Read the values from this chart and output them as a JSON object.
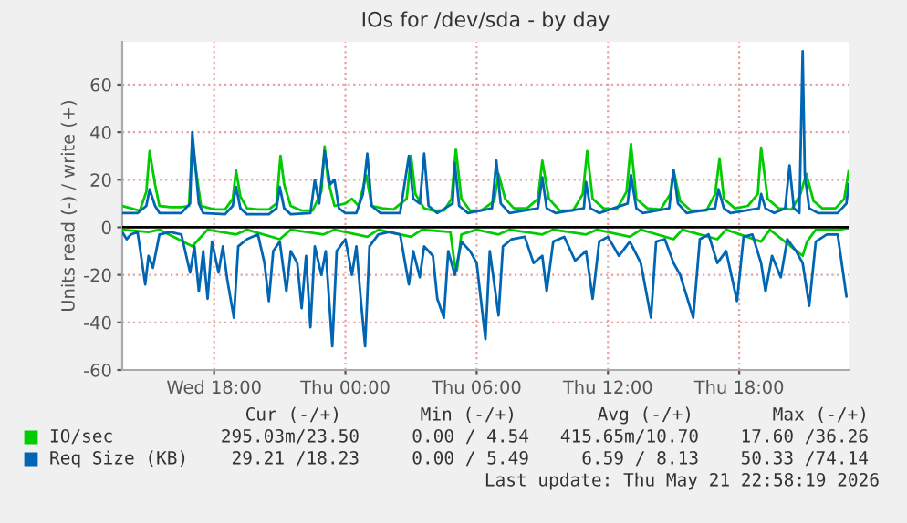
{
  "chart_data": {
    "type": "line",
    "title": "IOs for /dev/sda - by day",
    "ylabel": "Units read (-) / write (+)",
    "xlim": [
      "2026-05-20T13:48",
      "2026-05-21T23:00"
    ],
    "ylim": [
      -60,
      78
    ],
    "xticks": [
      {
        "value": "2026-05-20T18:00",
        "label": "Wed 18:00"
      },
      {
        "value": "2026-05-21T00:00",
        "label": "Thu 00:00"
      },
      {
        "value": "2026-05-21T06:00",
        "label": "Thu 06:00"
      },
      {
        "value": "2026-05-21T12:00",
        "label": "Thu 12:00"
      },
      {
        "value": "2026-05-21T18:00",
        "label": "Thu 18:00"
      }
    ],
    "yticks": [
      -60,
      -40,
      -20,
      0,
      20,
      40,
      60
    ],
    "grid": true,
    "legend": "bottom",
    "marker": "none",
    "line_style": "solid",
    "ref_lines": [
      {
        "axis": "y",
        "value": 0,
        "color": "#000000"
      }
    ],
    "series": [
      {
        "name": "IO/sec",
        "color": "#00cc00",
        "x": [
          "2026-05-20T13:48",
          "2026-05-20T14:12",
          "2026-05-20T14:36",
          "2026-05-20T14:54",
          "2026-05-20T15:03",
          "2026-05-20T15:18",
          "2026-05-20T15:30",
          "2026-05-20T16:00",
          "2026-05-20T16:30",
          "2026-05-20T16:51",
          "2026-05-20T17:00",
          "2026-05-20T17:12",
          "2026-05-20T17:24",
          "2026-05-20T18:00",
          "2026-05-20T18:30",
          "2026-05-20T18:51",
          "2026-05-20T19:00",
          "2026-05-20T19:12",
          "2026-05-20T19:30",
          "2026-05-20T20:00",
          "2026-05-20T20:30",
          "2026-05-20T20:51",
          "2026-05-20T21:02",
          "2026-05-20T21:12",
          "2026-05-20T21:30",
          "2026-05-20T22:00",
          "2026-05-20T22:30",
          "2026-05-20T22:54",
          "2026-05-20T23:03",
          "2026-05-20T23:12",
          "2026-05-20T23:30",
          "2026-05-21T00:00",
          "2026-05-21T00:18",
          "2026-05-21T00:36",
          "2026-05-21T00:57",
          "2026-05-21T01:12",
          "2026-05-21T01:42",
          "2026-05-21T02:12",
          "2026-05-21T02:48",
          "2026-05-21T03:00",
          "2026-05-21T03:12",
          "2026-05-21T03:36",
          "2026-05-21T04:00",
          "2026-05-21T04:30",
          "2026-05-21T04:51",
          "2026-05-21T05:03",
          "2026-05-21T05:18",
          "2026-05-21T05:42",
          "2026-05-21T06:12",
          "2026-05-21T06:48",
          "2026-05-21T07:00",
          "2026-05-21T07:18",
          "2026-05-21T07:42",
          "2026-05-21T08:18",
          "2026-05-21T08:48",
          "2026-05-21T09:00",
          "2026-05-21T09:18",
          "2026-05-21T09:48",
          "2026-05-21T10:24",
          "2026-05-21T10:51",
          "2026-05-21T11:03",
          "2026-05-21T11:18",
          "2026-05-21T11:48",
          "2026-05-21T12:24",
          "2026-05-21T12:51",
          "2026-05-21T13:03",
          "2026-05-21T13:18",
          "2026-05-21T13:48",
          "2026-05-21T14:24",
          "2026-05-21T14:51",
          "2026-05-21T15:00",
          "2026-05-21T15:18",
          "2026-05-21T15:48",
          "2026-05-21T16:30",
          "2026-05-21T16:54",
          "2026-05-21T17:06",
          "2026-05-21T17:18",
          "2026-05-21T17:48",
          "2026-05-21T18:24",
          "2026-05-21T18:51",
          "2026-05-21T19:00",
          "2026-05-21T19:18",
          "2026-05-21T19:48",
          "2026-05-21T20:24",
          "2026-05-21T20:48",
          "2026-05-21T21:04",
          "2026-05-21T21:24",
          "2026-05-21T21:48",
          "2026-05-21T22:24",
          "2026-05-21T22:48",
          "2026-05-21T23:00"
        ],
        "values": [
          9,
          8,
          7,
          15,
          32,
          18,
          9,
          8.5,
          8.5,
          9,
          36,
          22,
          9,
          7.5,
          7.5,
          12,
          24,
          13,
          8,
          7.5,
          7.5,
          10,
          30,
          18,
          9,
          7,
          7,
          15,
          34,
          20,
          9,
          10,
          12,
          9,
          22,
          9,
          8,
          7.5,
          12,
          30,
          14,
          8,
          7,
          7,
          12,
          33,
          12,
          7,
          7,
          11,
          22.5,
          12,
          8,
          8,
          12,
          28,
          12,
          7,
          7,
          14,
          32,
          12,
          8,
          7.5,
          15,
          35,
          12,
          8,
          7.5,
          14,
          24,
          11,
          7,
          7,
          14,
          29,
          12,
          8,
          9,
          14,
          33.5,
          12,
          8,
          7.5,
          14,
          22.5,
          11,
          8,
          8,
          12,
          23.5
        ]
      },
      {
        "color": "#00cc00",
        "x": [
          "2026-05-20T13:48",
          "2026-05-20T15:00",
          "2026-05-20T15:30",
          "2026-05-20T17:00",
          "2026-05-20T17:18",
          "2026-05-20T17:42",
          "2026-05-20T19:00",
          "2026-05-20T19:30",
          "2026-05-20T21:00",
          "2026-05-20T21:30",
          "2026-05-20T23:00",
          "2026-05-20T23:30",
          "2026-05-21T01:00",
          "2026-05-21T01:30",
          "2026-05-21T03:00",
          "2026-05-21T03:30",
          "2026-05-21T04:48",
          "2026-05-21T05:00",
          "2026-05-21T05:06",
          "2026-05-21T05:18",
          "2026-05-21T06:00",
          "2026-05-21T07:00",
          "2026-05-21T07:30",
          "2026-05-21T09:00",
          "2026-05-21T09:30",
          "2026-05-21T11:00",
          "2026-05-21T11:30",
          "2026-05-21T13:00",
          "2026-05-21T13:30",
          "2026-05-21T15:00",
          "2026-05-21T15:24",
          "2026-05-21T17:00",
          "2026-05-21T17:24",
          "2026-05-21T19:00",
          "2026-05-21T19:24",
          "2026-05-21T20:54",
          "2026-05-21T21:06",
          "2026-05-21T21:30",
          "2026-05-21T22:30",
          "2026-05-21T23:00"
        ],
        "values": [
          -1,
          -2,
          -1,
          -8,
          -5,
          -1,
          -3,
          -1,
          -5,
          -1,
          -3,
          -1,
          -4,
          -1,
          -4,
          -1,
          -2,
          -16,
          -18,
          -3,
          -1,
          -3,
          -1,
          -3,
          -1,
          -3,
          -1,
          -4,
          -1,
          -5,
          -1,
          -5,
          -1,
          -6,
          -1,
          -12,
          -6,
          -1,
          -1,
          -0.3
        ]
      },
      {
        "name": "Req Size (KB)",
        "color": "#0066b3",
        "x": [
          "2026-05-20T13:48",
          "2026-05-20T14:30",
          "2026-05-20T14:54",
          "2026-05-20T15:03",
          "2026-05-20T15:18",
          "2026-05-20T15:30",
          "2026-05-20T16:30",
          "2026-05-20T16:54",
          "2026-05-20T17:00",
          "2026-05-20T17:09",
          "2026-05-20T17:18",
          "2026-05-20T17:30",
          "2026-05-20T18:30",
          "2026-05-20T18:51",
          "2026-05-20T19:00",
          "2026-05-20T19:12",
          "2026-05-20T19:30",
          "2026-05-20T20:30",
          "2026-05-20T20:51",
          "2026-05-20T21:00",
          "2026-05-20T21:12",
          "2026-05-20T21:30",
          "2026-05-20T22:24",
          "2026-05-20T22:36",
          "2026-05-20T22:48",
          "2026-05-20T23:03",
          "2026-05-20T23:18",
          "2026-05-20T23:30",
          "2026-05-20T23:42",
          "2026-05-21T00:00",
          "2026-05-21T00:30",
          "2026-05-21T00:48",
          "2026-05-21T01:00",
          "2026-05-21T01:12",
          "2026-05-21T01:36",
          "2026-05-21T02:30",
          "2026-05-21T02:54",
          "2026-05-21T03:06",
          "2026-05-21T03:24",
          "2026-05-21T03:36",
          "2026-05-21T03:48",
          "2026-05-21T04:12",
          "2026-05-21T04:54",
          "2026-05-21T05:00",
          "2026-05-21T05:12",
          "2026-05-21T05:36",
          "2026-05-21T06:42",
          "2026-05-21T06:54",
          "2026-05-21T07:06",
          "2026-05-21T07:30",
          "2026-05-21T08:48",
          "2026-05-21T09:00",
          "2026-05-21T09:12",
          "2026-05-21T09:36",
          "2026-05-21T10:54",
          "2026-05-21T11:00",
          "2026-05-21T11:12",
          "2026-05-21T11:36",
          "2026-05-21T12:54",
          "2026-05-21T13:03",
          "2026-05-21T13:18",
          "2026-05-21T13:36",
          "2026-05-21T14:48",
          "2026-05-21T15:00",
          "2026-05-21T15:12",
          "2026-05-21T15:36",
          "2026-05-21T16:54",
          "2026-05-21T17:03",
          "2026-05-21T17:18",
          "2026-05-21T17:36",
          "2026-05-21T18:54",
          "2026-05-21T19:00",
          "2026-05-21T19:12",
          "2026-05-21T19:36",
          "2026-05-21T20:06",
          "2026-05-21T20:18",
          "2026-05-21T20:30",
          "2026-05-21T20:45",
          "2026-05-21T20:54",
          "2026-05-21T21:00",
          "2026-05-21T21:12",
          "2026-05-21T21:36",
          "2026-05-21T22:30",
          "2026-05-21T22:54",
          "2026-05-21T23:00"
        ],
        "values": [
          6,
          6,
          9,
          16,
          9,
          6,
          6,
          10,
          40,
          25,
          10,
          6,
          5.5,
          9,
          17,
          8,
          5.5,
          5.5,
          8,
          17,
          8,
          5.5,
          6,
          20,
          10,
          32,
          18,
          20,
          8,
          6,
          6,
          14,
          31,
          9,
          6,
          6,
          30,
          12,
          10,
          31,
          9,
          6,
          10,
          27,
          9,
          6,
          8,
          28,
          10,
          6,
          8,
          21,
          8,
          6,
          8,
          19,
          8,
          6,
          10,
          22,
          8,
          6,
          8,
          24,
          10,
          6,
          8,
          16,
          8,
          6,
          8,
          14,
          8,
          6,
          8,
          26,
          8,
          6,
          74,
          22,
          8,
          6,
          6,
          10,
          18
        ]
      },
      {
        "color": "#0066b3",
        "x": [
          "2026-05-20T13:48",
          "2026-05-20T14:00",
          "2026-05-20T14:12",
          "2026-05-20T14:30",
          "2026-05-20T14:51",
          "2026-05-20T15:00",
          "2026-05-20T15:12",
          "2026-05-20T15:30",
          "2026-05-20T16:00",
          "2026-05-20T16:30",
          "2026-05-20T16:54",
          "2026-05-20T17:06",
          "2026-05-20T17:18",
          "2026-05-20T17:30",
          "2026-05-20T17:42",
          "2026-05-20T17:54",
          "2026-05-20T18:12",
          "2026-05-20T18:24",
          "2026-05-20T18:36",
          "2026-05-20T18:54",
          "2026-05-20T19:06",
          "2026-05-20T19:30",
          "2026-05-20T20:00",
          "2026-05-20T20:18",
          "2026-05-20T20:30",
          "2026-05-20T20:42",
          "2026-05-20T21:00",
          "2026-05-20T21:18",
          "2026-05-20T21:30",
          "2026-05-20T21:48",
          "2026-05-20T22:00",
          "2026-05-20T22:12",
          "2026-05-20T22:24",
          "2026-05-20T22:36",
          "2026-05-20T22:54",
          "2026-05-20T23:06",
          "2026-05-20T23:24",
          "2026-05-20T23:36",
          "2026-05-21T00:00",
          "2026-05-21T00:18",
          "2026-05-21T00:30",
          "2026-05-21T00:42",
          "2026-05-21T00:54",
          "2026-05-21T01:06",
          "2026-05-21T01:30",
          "2026-05-21T02:00",
          "2026-05-21T02:30",
          "2026-05-21T02:54",
          "2026-05-21T03:06",
          "2026-05-21T03:24",
          "2026-05-21T03:36",
          "2026-05-21T04:00",
          "2026-05-21T04:12",
          "2026-05-21T04:30",
          "2026-05-21T04:42",
          "2026-05-21T05:00",
          "2026-05-21T05:18",
          "2026-05-21T05:42",
          "2026-05-21T06:00",
          "2026-05-21T06:24",
          "2026-05-21T06:36",
          "2026-05-21T07:00",
          "2026-05-21T07:12",
          "2026-05-21T07:36",
          "2026-05-21T08:12",
          "2026-05-21T08:36",
          "2026-05-21T09:00",
          "2026-05-21T09:12",
          "2026-05-21T09:30",
          "2026-05-21T10:00",
          "2026-05-21T10:30",
          "2026-05-21T11:00",
          "2026-05-21T11:18",
          "2026-05-21T11:36",
          "2026-05-21T12:00",
          "2026-05-21T12:30",
          "2026-05-21T13:00",
          "2026-05-21T13:30",
          "2026-05-21T13:58",
          "2026-05-21T14:12",
          "2026-05-21T14:36",
          "2026-05-21T15:00",
          "2026-05-21T15:18",
          "2026-05-21T15:54",
          "2026-05-21T16:12",
          "2026-05-21T16:36",
          "2026-05-21T17:00",
          "2026-05-21T17:24",
          "2026-05-21T17:54",
          "2026-05-21T18:12",
          "2026-05-21T18:36",
          "2026-05-21T19:00",
          "2026-05-21T19:12",
          "2026-05-21T19:30",
          "2026-05-21T19:54",
          "2026-05-21T20:12",
          "2026-05-21T20:36",
          "2026-05-21T20:54",
          "2026-05-21T21:12",
          "2026-05-21T21:30",
          "2026-05-21T22:00",
          "2026-05-21T22:30",
          "2026-05-21T22:54"
        ],
        "values": [
          -2,
          -5,
          -3,
          -2,
          -24,
          -12,
          -17,
          -3,
          -2,
          -3,
          -19,
          -8,
          -27,
          -10,
          -30,
          -6,
          -19,
          -8,
          -22,
          -38,
          -8,
          -5,
          -3,
          -15,
          -31,
          -10,
          -6,
          -27,
          -10,
          -15,
          -34,
          -12,
          -42,
          -8,
          -20,
          -10,
          -50,
          -10,
          -5,
          -20,
          -8,
          -30,
          -50,
          -8,
          -3,
          -2,
          -3,
          -24,
          -10,
          -21,
          -8,
          -12,
          -30,
          -38,
          -10,
          -20,
          -6,
          -10,
          -15,
          -47,
          -10,
          -37,
          -8,
          -5,
          -4,
          -15,
          -12,
          -27,
          -6,
          -4,
          -14,
          -10,
          -30,
          -6,
          -4,
          -12,
          -6,
          -15,
          -38,
          -6,
          -5,
          -15,
          -20,
          -38,
          -5,
          -3,
          -15,
          -10,
          -31,
          -4,
          -3,
          -15,
          -27,
          -12,
          -21,
          -5,
          -10,
          -15,
          -33,
          -6,
          -3,
          -3,
          -29
        ]
      }
    ],
    "annotations": [
      "Cur (-/+)",
      "Min (-/+)",
      "Avg (-/+)",
      "Max (-/+)",
      "295.03m/23.50",
      "0.00 / 4.54",
      "415.65m/10.70",
      "17.60 /36.26",
      "29.21 /18.23",
      "0.00 / 5.49",
      "6.59 / 8.13",
      "50.33 /74.14",
      "Last update: Thu May 21 22:58:19 2026"
    ]
  }
}
